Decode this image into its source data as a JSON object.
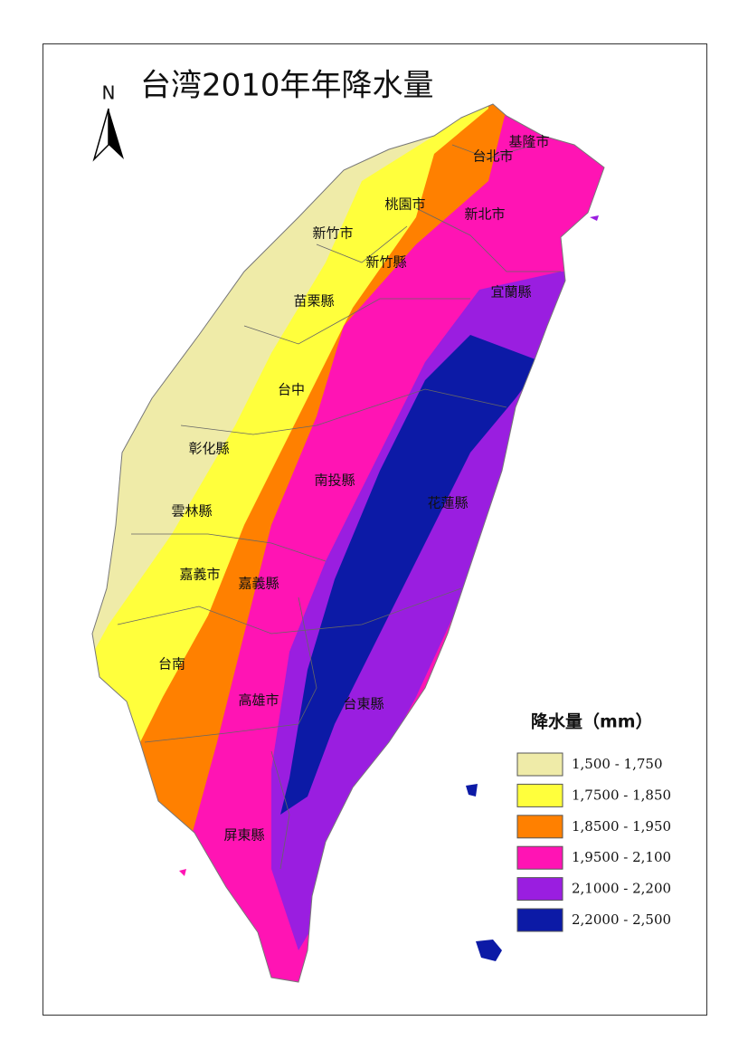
{
  "title": "台湾2010年年降水量",
  "north": "N",
  "regions": [
    "基隆市",
    "台北市",
    "桃園市",
    "新北市",
    "新竹市",
    "新竹縣",
    "宜蘭縣",
    "苗栗縣",
    "台中",
    "彰化縣",
    "南投縣",
    "花蓮縣",
    "雲林縣",
    "嘉義市",
    "嘉義縣",
    "台南",
    "高雄市",
    "台東縣",
    "屏東縣"
  ],
  "legend": {
    "title": "降水量（mm）",
    "items": [
      {
        "label": "1,500 - 1,750",
        "color": "#efeba8"
      },
      {
        "label": "1,7500 - 1,850",
        "color": "#ffff3c"
      },
      {
        "label": "1,8500 - 1,950",
        "color": "#ff8000"
      },
      {
        "label": "1,9500 - 2,100",
        "color": "#ff14b4"
      },
      {
        "label": "2,1000 - 2,200",
        "color": "#9a1ee0"
      },
      {
        "label": "2,2000 - 2,500",
        "color": "#0c1aa6"
      }
    ]
  }
}
